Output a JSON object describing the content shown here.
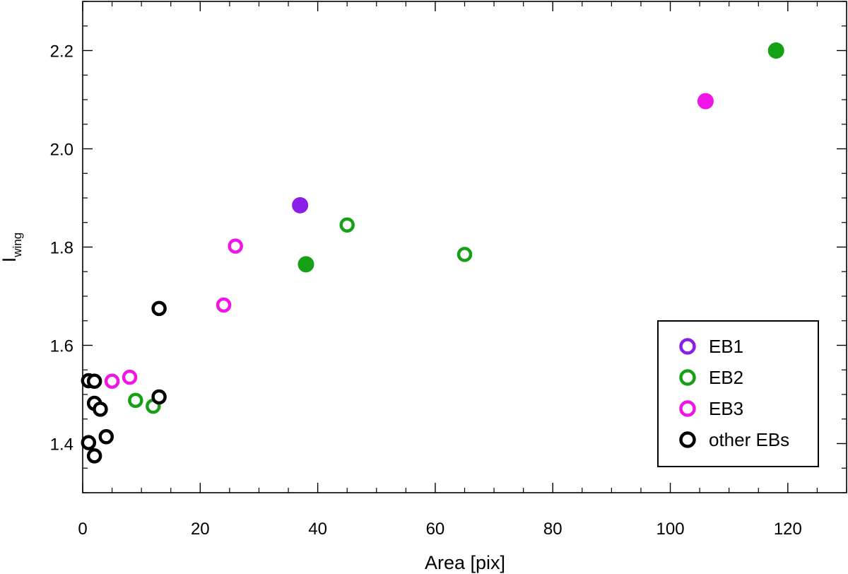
{
  "chart_data": {
    "type": "scatter",
    "xlabel": "Area [pix]",
    "ylabel_main": "I",
    "ylabel_sub": "wing",
    "xlim": [
      0,
      130
    ],
    "ylim": [
      1.3,
      2.3
    ],
    "xticks": [
      0,
      20,
      40,
      60,
      80,
      100,
      120
    ],
    "xtick_labels": [
      "0",
      "20",
      "40",
      "60",
      "80",
      "100",
      "120"
    ],
    "yticks": [
      1.4,
      1.6,
      1.8,
      2.0,
      2.2
    ],
    "ytick_labels": [
      "1.4",
      "1.6",
      "1.8",
      "2.0",
      "2.2"
    ],
    "grid": false,
    "legend_position": "bottom-right",
    "series": [
      {
        "name": "EB1",
        "color": "#8a1ee6",
        "points": [
          {
            "x": 37,
            "y": 1.885,
            "filled": true
          }
        ]
      },
      {
        "name": "EB2",
        "color": "#16a016",
        "points": [
          {
            "x": 118,
            "y": 2.2,
            "filled": true
          },
          {
            "x": 38,
            "y": 1.765,
            "filled": true
          },
          {
            "x": 45,
            "y": 1.845,
            "filled": false
          },
          {
            "x": 65,
            "y": 1.785,
            "filled": false
          },
          {
            "x": 9,
            "y": 1.488,
            "filled": false
          },
          {
            "x": 12,
            "y": 1.476,
            "filled": false
          }
        ]
      },
      {
        "name": "EB3",
        "color": "#f015e6",
        "points": [
          {
            "x": 106,
            "y": 2.097,
            "filled": true
          },
          {
            "x": 26,
            "y": 1.802,
            "filled": false
          },
          {
            "x": 24,
            "y": 1.682,
            "filled": false
          },
          {
            "x": 5,
            "y": 1.527,
            "filled": false
          },
          {
            "x": 8,
            "y": 1.535,
            "filled": false
          }
        ]
      },
      {
        "name": "other EBs",
        "color": "#000000",
        "points": [
          {
            "x": 13,
            "y": 1.675,
            "filled": false
          },
          {
            "x": 13,
            "y": 1.495,
            "filled": false
          },
          {
            "x": 1,
            "y": 1.528,
            "filled": false
          },
          {
            "x": 2,
            "y": 1.527,
            "filled": false
          },
          {
            "x": 2,
            "y": 1.482,
            "filled": false
          },
          {
            "x": 3,
            "y": 1.47,
            "filled": false
          },
          {
            "x": 4,
            "y": 1.414,
            "filled": false
          },
          {
            "x": 1,
            "y": 1.402,
            "filled": false
          },
          {
            "x": 2,
            "y": 1.375,
            "filled": false
          }
        ]
      }
    ]
  }
}
